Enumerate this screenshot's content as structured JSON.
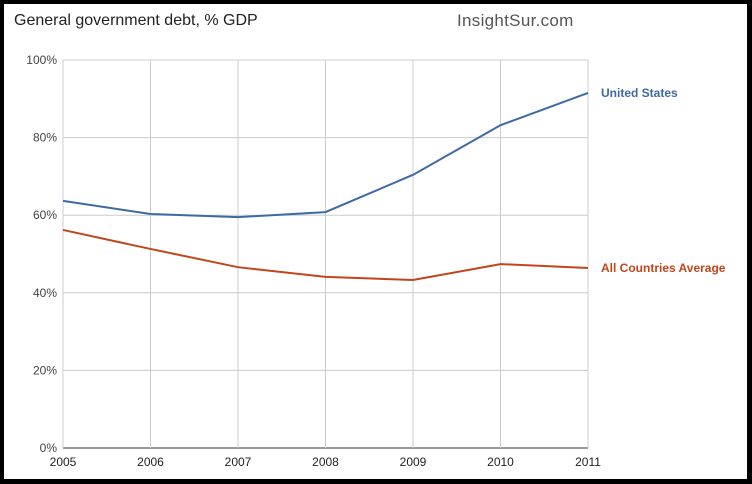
{
  "chart_data": {
    "type": "line",
    "title": "General government debt, % GDP",
    "watermark": "InsightSur.com",
    "x": [
      2005,
      2006,
      2007,
      2008,
      2009,
      2010,
      2011
    ],
    "x_tick_labels": [
      "2005",
      "2006",
      "2007",
      "2008",
      "2009",
      "2010",
      "2011"
    ],
    "y_tick_labels": [
      "0%",
      "20%",
      "40%",
      "60%",
      "80%",
      "100%"
    ],
    "y_ticks": [
      0,
      20,
      40,
      60,
      80,
      100
    ],
    "ylim": [
      0,
      100
    ],
    "grid": true,
    "legend": "inline-right",
    "series": [
      {
        "name": "United States",
        "color": "#3d6aa5",
        "values": [
          63.7,
          60.3,
          59.5,
          60.8,
          70.4,
          83.2,
          91.5
        ]
      },
      {
        "name": "All Countries Average",
        "color": "#c1461c",
        "values": [
          56.2,
          51.3,
          46.6,
          44.1,
          43.3,
          47.4,
          46.4
        ]
      }
    ]
  }
}
